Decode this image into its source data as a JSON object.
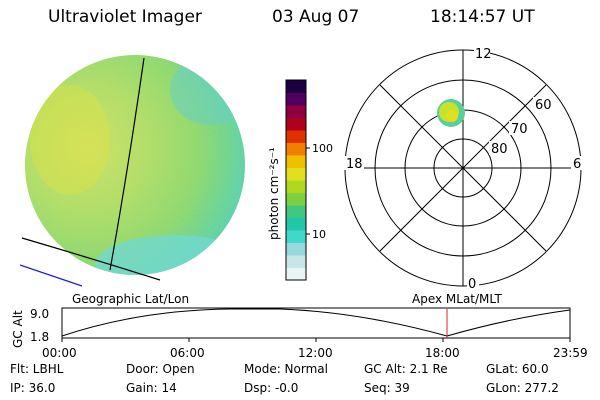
{
  "header": {
    "instrument": "Ultraviolet Imager",
    "date": "03 Aug 07",
    "time": "18:14:57 UT"
  },
  "colorbar": {
    "unit_label": "photon cm⁻²s⁻¹",
    "tick_100": "100",
    "tick_10": "10",
    "colors": [
      "#eaf4f4",
      "#c7e6e6",
      "#98d8dc",
      "#40d8c8",
      "#20c8a8",
      "#40c880",
      "#7cd040",
      "#b0d820",
      "#e0e020",
      "#f0c000",
      "#f08000",
      "#e03000",
      "#b00020",
      "#900040",
      "#500060",
      "#1a0040"
    ]
  },
  "polar": {
    "mlt_12": "12",
    "mlt_18": "18",
    "mlt_6": "6",
    "mlt_0": "0",
    "lat_60": "60",
    "lat_70": "70",
    "lat_80": "80"
  },
  "timeline": {
    "left_label": "Geographic Lat/Lon",
    "right_label": "Apex  MLat/MLT",
    "axis_title": "GC Alt",
    "y_max": "9.0",
    "y_min": "1.8",
    "ticks": [
      "00:00",
      "06:00",
      "12:00",
      "18:00",
      "23:59"
    ],
    "marker_color": "#d82020"
  },
  "status": {
    "flt": "Flt: LBHL",
    "door": "Door: Open",
    "mode": "Mode: Normal",
    "gc_alt": "GC Alt: 2.1 Re",
    "glat": "GLat:  60.0",
    "ip": "IP: 36.0",
    "gain": "Gain: 14",
    "dsp": "Dsp:   -0.0",
    "seq": "Seq: 39",
    "glon": "GLon: 277.2"
  }
}
